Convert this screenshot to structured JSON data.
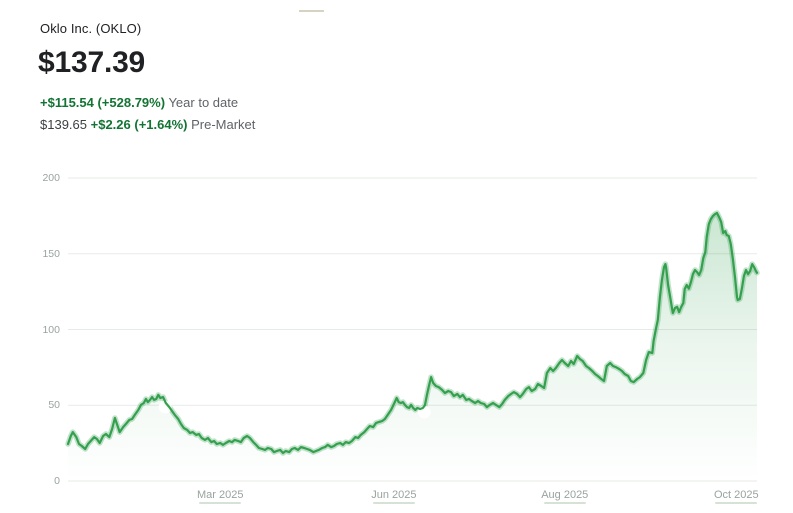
{
  "header": {
    "company": "Oklo Inc. (OKLO)",
    "price": "$137.39",
    "ytd_change": "+$115.54 (+528.79%)",
    "ytd_label": "Year to date",
    "premarket_price": "$139.65",
    "premarket_change": "+$2.26 (+1.64%)",
    "premarket_label": "Pre-Market"
  },
  "colors": {
    "positive_green_text": "#137333",
    "line_green": "#34a04e",
    "line_glow": "rgba(52,160,82,0.30)",
    "area_green": "52,160,82",
    "grid": "#e7ebe7",
    "axis_text": "#9aa39e",
    "primary_text": "#202124",
    "secondary_text": "#5f6368"
  },
  "chart_data": {
    "type": "area",
    "title": "Oklo Inc. (OKLO) year-to-date stock price",
    "xlabel": "",
    "ylabel": "",
    "ylim": [
      0,
      200
    ],
    "grid": true,
    "yticks": [
      200,
      150,
      100,
      50,
      0
    ],
    "xticks": [
      {
        "label": "Mar 2025",
        "f": 0.221
      },
      {
        "label": "Jun 2025",
        "f": 0.473
      },
      {
        "label": "Aug 2025",
        "f": 0.721
      },
      {
        "label": "Oct 2025",
        "f": 0.97
      }
    ],
    "markers": [
      {
        "f": 0.141,
        "p": 48.8
      },
      {
        "f": 0.517,
        "p": 45.5
      }
    ],
    "points": [
      [
        0.0,
        24.4
      ],
      [
        0.004,
        29.7
      ],
      [
        0.007,
        32.3
      ],
      [
        0.012,
        29.0
      ],
      [
        0.016,
        24.4
      ],
      [
        0.02,
        23.1
      ],
      [
        0.025,
        21.1
      ],
      [
        0.029,
        24.4
      ],
      [
        0.033,
        26.4
      ],
      [
        0.038,
        29.0
      ],
      [
        0.042,
        27.7
      ],
      [
        0.046,
        25.1
      ],
      [
        0.051,
        29.7
      ],
      [
        0.055,
        31.0
      ],
      [
        0.06,
        29.0
      ],
      [
        0.064,
        34.3
      ],
      [
        0.068,
        41.6
      ],
      [
        0.073,
        35.0
      ],
      [
        0.075,
        32.3
      ],
      [
        0.08,
        35.6
      ],
      [
        0.084,
        37.6
      ],
      [
        0.089,
        40.3
      ],
      [
        0.093,
        40.9
      ],
      [
        0.097,
        43.6
      ],
      [
        0.102,
        46.9
      ],
      [
        0.106,
        50.2
      ],
      [
        0.11,
        51.5
      ],
      [
        0.113,
        54.1
      ],
      [
        0.116,
        52.1
      ],
      [
        0.119,
        53.5
      ],
      [
        0.122,
        55.4
      ],
      [
        0.125,
        53.5
      ],
      [
        0.128,
        54.1
      ],
      [
        0.131,
        56.8
      ],
      [
        0.134,
        54.8
      ],
      [
        0.138,
        55.4
      ],
      [
        0.142,
        51.5
      ],
      [
        0.147,
        48.8
      ],
      [
        0.151,
        46.2
      ],
      [
        0.155,
        43.6
      ],
      [
        0.16,
        40.9
      ],
      [
        0.164,
        37.6
      ],
      [
        0.168,
        35.0
      ],
      [
        0.173,
        33.7
      ],
      [
        0.177,
        31.7
      ],
      [
        0.181,
        32.3
      ],
      [
        0.186,
        30.4
      ],
      [
        0.19,
        31.0
      ],
      [
        0.194,
        28.4
      ],
      [
        0.199,
        27.1
      ],
      [
        0.203,
        28.4
      ],
      [
        0.208,
        25.7
      ],
      [
        0.212,
        26.4
      ],
      [
        0.216,
        24.4
      ],
      [
        0.221,
        25.1
      ],
      [
        0.225,
        23.8
      ],
      [
        0.229,
        25.1
      ],
      [
        0.234,
        26.4
      ],
      [
        0.238,
        25.7
      ],
      [
        0.242,
        27.1
      ],
      [
        0.247,
        26.4
      ],
      [
        0.251,
        25.7
      ],
      [
        0.255,
        28.4
      ],
      [
        0.26,
        29.7
      ],
      [
        0.264,
        28.4
      ],
      [
        0.269,
        25.7
      ],
      [
        0.273,
        23.8
      ],
      [
        0.277,
        21.8
      ],
      [
        0.282,
        21.1
      ],
      [
        0.286,
        20.5
      ],
      [
        0.29,
        21.8
      ],
      [
        0.295,
        21.1
      ],
      [
        0.299,
        19.1
      ],
      [
        0.303,
        19.8
      ],
      [
        0.308,
        20.5
      ],
      [
        0.312,
        18.5
      ],
      [
        0.316,
        19.8
      ],
      [
        0.321,
        19.1
      ],
      [
        0.325,
        21.1
      ],
      [
        0.329,
        21.8
      ],
      [
        0.334,
        20.5
      ],
      [
        0.338,
        22.4
      ],
      [
        0.343,
        21.8
      ],
      [
        0.347,
        21.1
      ],
      [
        0.351,
        20.5
      ],
      [
        0.356,
        19.1
      ],
      [
        0.36,
        19.8
      ],
      [
        0.364,
        20.5
      ],
      [
        0.369,
        21.8
      ],
      [
        0.373,
        22.4
      ],
      [
        0.377,
        23.8
      ],
      [
        0.382,
        22.4
      ],
      [
        0.386,
        23.1
      ],
      [
        0.39,
        24.4
      ],
      [
        0.395,
        25.1
      ],
      [
        0.399,
        23.8
      ],
      [
        0.403,
        25.7
      ],
      [
        0.408,
        25.1
      ],
      [
        0.412,
        26.4
      ],
      [
        0.417,
        29.0
      ],
      [
        0.421,
        28.4
      ],
      [
        0.425,
        30.4
      ],
      [
        0.43,
        32.3
      ],
      [
        0.434,
        34.3
      ],
      [
        0.438,
        36.3
      ],
      [
        0.443,
        35.6
      ],
      [
        0.447,
        38.3
      ],
      [
        0.451,
        38.9
      ],
      [
        0.456,
        39.6
      ],
      [
        0.46,
        40.9
      ],
      [
        0.464,
        43.6
      ],
      [
        0.469,
        46.9
      ],
      [
        0.473,
        50.8
      ],
      [
        0.477,
        54.8
      ],
      [
        0.48,
        52.1
      ],
      [
        0.483,
        51.5
      ],
      [
        0.486,
        52.1
      ],
      [
        0.489,
        50.2
      ],
      [
        0.492,
        48.8
      ],
      [
        0.495,
        48.2
      ],
      [
        0.498,
        50.2
      ],
      [
        0.501,
        48.2
      ],
      [
        0.504,
        46.9
      ],
      [
        0.507,
        48.2
      ],
      [
        0.511,
        47.5
      ],
      [
        0.515,
        48.2
      ],
      [
        0.518,
        50.0
      ],
      [
        0.521,
        57.0
      ],
      [
        0.524,
        63.0
      ],
      [
        0.527,
        68.6
      ],
      [
        0.53,
        64.7
      ],
      [
        0.534,
        62.7
      ],
      [
        0.538,
        62.0
      ],
      [
        0.543,
        60.1
      ],
      [
        0.547,
        58.1
      ],
      [
        0.552,
        59.4
      ],
      [
        0.556,
        58.7
      ],
      [
        0.56,
        56.1
      ],
      [
        0.565,
        57.4
      ],
      [
        0.569,
        55.4
      ],
      [
        0.573,
        56.8
      ],
      [
        0.578,
        53.5
      ],
      [
        0.582,
        54.1
      ],
      [
        0.586,
        52.8
      ],
      [
        0.591,
        51.5
      ],
      [
        0.595,
        52.8
      ],
      [
        0.599,
        51.5
      ],
      [
        0.604,
        50.8
      ],
      [
        0.608,
        48.8
      ],
      [
        0.612,
        50.2
      ],
      [
        0.617,
        51.5
      ],
      [
        0.621,
        50.2
      ],
      [
        0.626,
        48.8
      ],
      [
        0.63,
        50.8
      ],
      [
        0.634,
        53.5
      ],
      [
        0.639,
        56.1
      ],
      [
        0.643,
        57.4
      ],
      [
        0.647,
        58.7
      ],
      [
        0.652,
        57.4
      ],
      [
        0.656,
        55.4
      ],
      [
        0.66,
        57.4
      ],
      [
        0.665,
        60.7
      ],
      [
        0.669,
        62.0
      ],
      [
        0.673,
        59.4
      ],
      [
        0.678,
        60.7
      ],
      [
        0.682,
        64.0
      ],
      [
        0.687,
        62.7
      ],
      [
        0.691,
        61.4
      ],
      [
        0.695,
        71.3
      ],
      [
        0.7,
        74.6
      ],
      [
        0.704,
        72.6
      ],
      [
        0.708,
        74.6
      ],
      [
        0.713,
        77.9
      ],
      [
        0.717,
        79.9
      ],
      [
        0.721,
        77.9
      ],
      [
        0.726,
        75.9
      ],
      [
        0.73,
        79.2
      ],
      [
        0.734,
        77.2
      ],
      [
        0.739,
        82.5
      ],
      [
        0.743,
        80.5
      ],
      [
        0.747,
        79.2
      ],
      [
        0.752,
        75.9
      ],
      [
        0.756,
        74.6
      ],
      [
        0.761,
        72.6
      ],
      [
        0.765,
        70.6
      ],
      [
        0.769,
        69.3
      ],
      [
        0.774,
        67.3
      ],
      [
        0.778,
        66.0
      ],
      [
        0.782,
        75.9
      ],
      [
        0.787,
        77.9
      ],
      [
        0.791,
        75.9
      ],
      [
        0.795,
        75.2
      ],
      [
        0.8,
        73.9
      ],
      [
        0.804,
        72.6
      ],
      [
        0.808,
        70.6
      ],
      [
        0.813,
        69.3
      ],
      [
        0.817,
        66.0
      ],
      [
        0.821,
        65.3
      ],
      [
        0.826,
        67.3
      ],
      [
        0.83,
        68.6
      ],
      [
        0.835,
        71.3
      ],
      [
        0.839,
        79.9
      ],
      [
        0.843,
        85.1
      ],
      [
        0.848,
        84.5
      ],
      [
        0.85,
        92.4
      ],
      [
        0.853,
        99.7
      ],
      [
        0.856,
        106.3
      ],
      [
        0.859,
        121.4
      ],
      [
        0.862,
        132.7
      ],
      [
        0.865,
        141.2
      ],
      [
        0.867,
        143.2
      ],
      [
        0.868,
        141.0
      ],
      [
        0.871,
        129.4
      ],
      [
        0.874,
        121.4
      ],
      [
        0.877,
        112.9
      ],
      [
        0.878,
        110.9
      ],
      [
        0.881,
        114.2
      ],
      [
        0.884,
        115.0
      ],
      [
        0.887,
        111.5
      ],
      [
        0.89,
        114.9
      ],
      [
        0.893,
        117.5
      ],
      [
        0.895,
        126.7
      ],
      [
        0.898,
        129.4
      ],
      [
        0.901,
        127.0
      ],
      [
        0.904,
        131.3
      ],
      [
        0.907,
        136.6
      ],
      [
        0.91,
        139.3
      ],
      [
        0.913,
        137.9
      ],
      [
        0.916,
        136.0
      ],
      [
        0.919,
        139.3
      ],
      [
        0.922,
        147.2
      ],
      [
        0.925,
        151.1
      ],
      [
        0.927,
        161.0
      ],
      [
        0.93,
        169.6
      ],
      [
        0.933,
        172.9
      ],
      [
        0.936,
        174.9
      ],
      [
        0.939,
        176.2
      ],
      [
        0.942,
        176.9
      ],
      [
        0.945,
        174.2
      ],
      [
        0.948,
        170.9
      ],
      [
        0.951,
        163.7
      ],
      [
        0.954,
        165.0
      ],
      [
        0.956,
        162.4
      ],
      [
        0.959,
        161.7
      ],
      [
        0.962,
        156.4
      ],
      [
        0.965,
        146.5
      ],
      [
        0.968,
        134.6
      ],
      [
        0.971,
        121.4
      ],
      [
        0.972,
        119.5
      ],
      [
        0.975,
        120.1
      ],
      [
        0.978,
        126.7
      ],
      [
        0.981,
        135.3
      ],
      [
        0.984,
        139.3
      ],
      [
        0.987,
        136.6
      ],
      [
        0.99,
        138.6
      ],
      [
        0.993,
        143.2
      ],
      [
        0.996,
        141.0
      ],
      [
        0.998,
        139.0
      ],
      [
        1.0,
        137.4
      ]
    ]
  }
}
